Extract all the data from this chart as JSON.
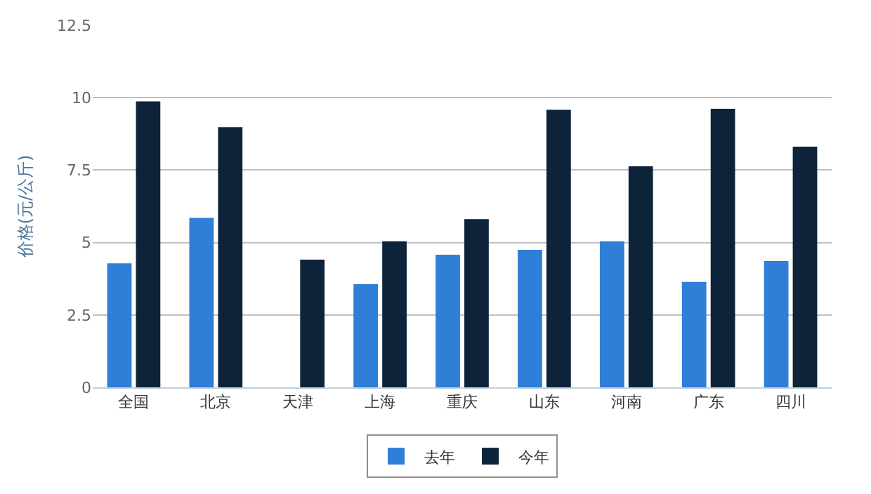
{
  "chart_data": {
    "type": "bar",
    "ylabel": "价格(元/公斤)",
    "categories": [
      "全国",
      "北京",
      "天津",
      "上海",
      "重庆",
      "山东",
      "河南",
      "广东",
      "四川"
    ],
    "series": [
      {
        "name": "去年",
        "color": "#2f7ed8",
        "values": [
          4.28,
          5.85,
          null,
          3.56,
          4.58,
          4.75,
          5.04,
          3.64,
          4.36
        ]
      },
      {
        "name": "今年",
        "color": "#0d233a",
        "values": [
          9.87,
          8.98,
          4.41,
          5.04,
          5.81,
          9.58,
          7.63,
          9.62,
          8.31
        ]
      }
    ],
    "ylim": [
      0,
      12.5
    ],
    "yticks": [
      0,
      2.5,
      5,
      7.5,
      10,
      12.5
    ],
    "grid": "y",
    "legend": "bottom"
  }
}
